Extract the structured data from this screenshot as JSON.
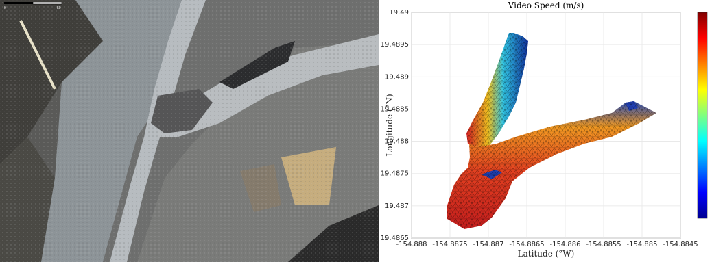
{
  "photo": {
    "description_icon": "aerial-lava-channel-photo",
    "scale_bar": {
      "left_label": "0",
      "right_label": "50"
    }
  },
  "chart_data": {
    "type": "heatmap",
    "title": "Video Speed (m/s)",
    "xlabel": "Latitude (°W)",
    "ylabel": "Longitude (°N)",
    "xlim": [
      -154.888,
      -154.8845
    ],
    "ylim": [
      19.4865,
      19.49
    ],
    "xticks": [
      "-154.888",
      "-154.8875",
      "-154.887",
      "-154.8865",
      "-154.886",
      "-154.8855",
      "-154.885",
      "-154.8845"
    ],
    "yticks": [
      "19.4865",
      "19.487",
      "19.4875",
      "19.488",
      "19.4885",
      "19.489",
      "19.4895",
      "19.49"
    ],
    "grid": true,
    "colormap": "jet",
    "colorbar": {
      "location": "right",
      "tick_labels": []
    },
    "mesh": "triangular",
    "regions": [
      {
        "name": "",
        "speed_level": "high",
        "color": "#d21e1e"
      },
      {
        "name": "",
        "speed_level": "low",
        "color": "#1a3fa0"
      }
    ]
  }
}
